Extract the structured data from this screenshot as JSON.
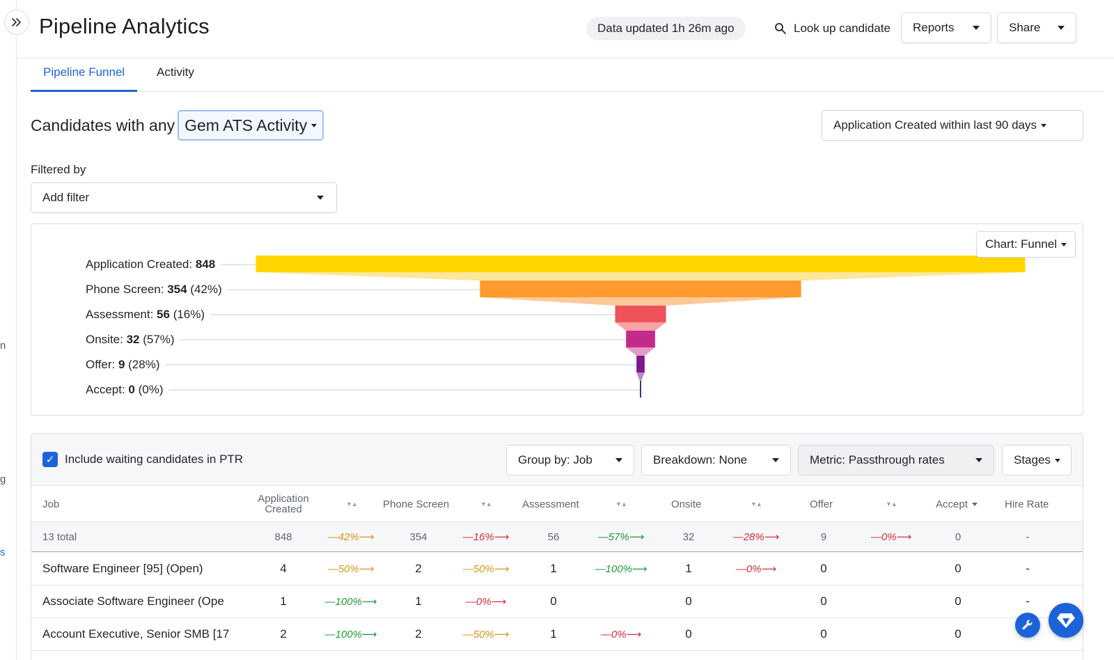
{
  "header": {
    "title": "Pipeline Analytics",
    "updated": "Data updated 1h 26m ago",
    "lookup_label": "Look up candidate",
    "reports_label": "Reports",
    "share_label": "Share"
  },
  "tabs": [
    {
      "label": "Pipeline Funnel",
      "active": true
    },
    {
      "label": "Activity",
      "active": false
    }
  ],
  "query": {
    "prefix": "Candidates with any",
    "activity": "Gem ATS Activity",
    "date_range": "Application Created within last 90 days"
  },
  "filters": {
    "label": "Filtered by",
    "add_filter": "Add filter"
  },
  "chart": {
    "type_button": "Chart: Funnel"
  },
  "chart_data": {
    "type": "funnel",
    "stages": [
      {
        "name": "Application Created",
        "value": 848,
        "pct": null,
        "color": "#FFD600",
        "trap_color": "#FCE79A"
      },
      {
        "name": "Phone Screen",
        "value": 354,
        "pct": "42%",
        "color": "#FF9A2E",
        "trap_color": "#FDC99A"
      },
      {
        "name": "Assessment",
        "value": 56,
        "pct": "16%",
        "color": "#F0525A",
        "trap_color": "#F7A3A6"
      },
      {
        "name": "Onsite",
        "value": 32,
        "pct": "57%",
        "color": "#C42A8A",
        "trap_color": "#E39CC6"
      },
      {
        "name": "Offer",
        "value": 9,
        "pct": "28%",
        "color": "#7B1890",
        "trap_color": "#B98AC4"
      },
      {
        "name": "Accept",
        "value": 0,
        "pct": "0%",
        "color": "#4B2A8C",
        "trap_color": "#4B2A8C"
      }
    ]
  },
  "table_toolbar": {
    "include_waiting": "Include waiting candidates in PTR",
    "group_by": "Group by: Job",
    "breakdown": "Breakdown: None",
    "metric": "Metric: Passthrough rates",
    "stages": "Stages"
  },
  "table": {
    "headers": {
      "job": "Job",
      "app_created_1": "Application",
      "app_created_2": "Created",
      "phone": "Phone Screen",
      "assessment": "Assessment",
      "onsite": "Onsite",
      "offer": "Offer",
      "accept": "Accept",
      "hire_rate": "Hire Rate"
    },
    "total": {
      "label": "13 total",
      "counts": [
        "848",
        "354",
        "56",
        "32",
        "9",
        "0"
      ],
      "rates": [
        "42%",
        "16%",
        "57%",
        "28%",
        "0%"
      ],
      "rate_colors": [
        "orange",
        "red",
        "green",
        "red",
        "red"
      ],
      "hire": "-"
    },
    "rows": [
      {
        "job": "Software Engineer [95] (Open)",
        "counts": [
          "4",
          "2",
          "1",
          "1",
          "0",
          "0"
        ],
        "rates": [
          "50%",
          "50%",
          "100%",
          "0%",
          "",
          ""
        ],
        "rate_colors": [
          "orange",
          "orange",
          "green",
          "red",
          "",
          ""
        ],
        "hire": "-"
      },
      {
        "job": "Associate Software Engineer (Ope",
        "counts": [
          "1",
          "1",
          "0",
          "0",
          "0",
          "0"
        ],
        "rates": [
          "100%",
          "0%",
          "",
          "",
          "",
          ""
        ],
        "rate_colors": [
          "green",
          "red",
          "",
          "",
          "",
          ""
        ],
        "hire": "-"
      },
      {
        "job": "Account Executive, Senior SMB [17",
        "counts": [
          "2",
          "2",
          "1",
          "0",
          "0",
          "0"
        ],
        "rates": [
          "100%",
          "50%",
          "0%",
          "",
          "",
          ""
        ],
        "rate_colors": [
          "green",
          "orange",
          "red",
          "",
          "",
          ""
        ],
        "hire": ""
      }
    ]
  },
  "left_rail_fragments": [
    "n",
    "g",
    "s"
  ]
}
